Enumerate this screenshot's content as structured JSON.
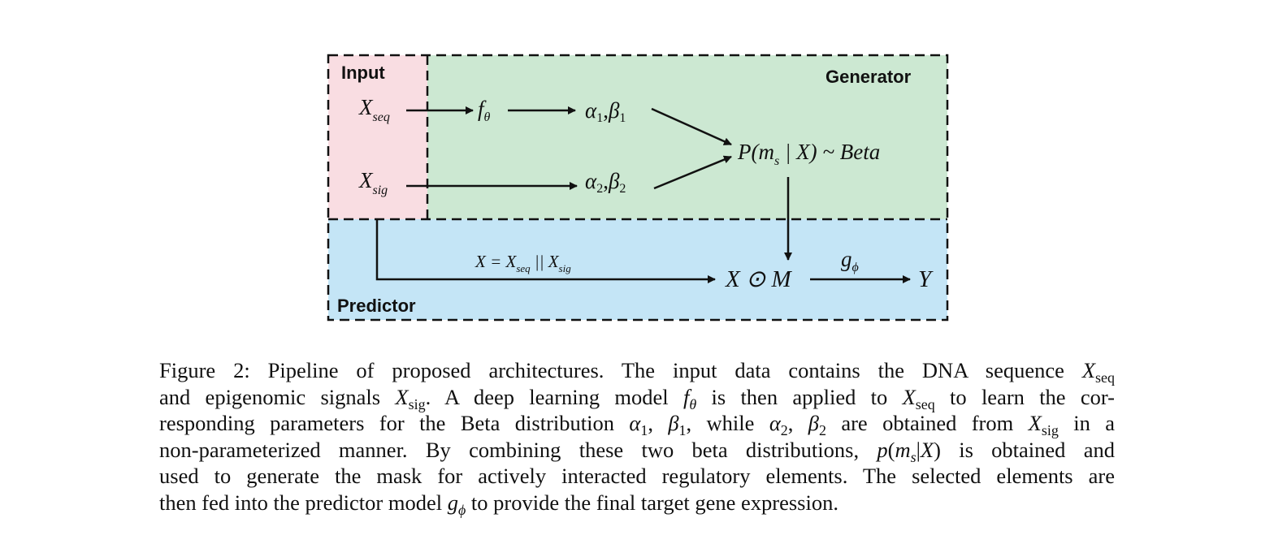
{
  "diagram": {
    "regions": {
      "input": "Input",
      "generator": "Generator",
      "predictor": "Predictor"
    },
    "colors": {
      "input": "#f9dde2",
      "generator": "#cce8d2",
      "predictor": "#c4e5f6",
      "stroke": "#111111"
    },
    "nodes": {
      "x_seq": {
        "base": "X",
        "sub": "seq"
      },
      "x_sig": {
        "base": "X",
        "sub": "sig"
      },
      "f_theta": {
        "base": "f",
        "sub": "θ"
      },
      "ab1": {
        "a": "α",
        "a_sub": "1",
        "sep": ",",
        "b": "β",
        "b_sub": "1"
      },
      "ab2": {
        "a": "α",
        "a_sub": "2",
        "sep": ",",
        "b": "β",
        "b_sub": "2"
      },
      "posterior": {
        "pre": "P(m",
        "sub": "s",
        "post": " | X) ~ Beta"
      },
      "concat": {
        "pre": "X = X",
        "sub1": "seq",
        "mid": " || X",
        "sub2": "sig"
      },
      "masked": "X ⊙ M",
      "g_phi": {
        "base": "g",
        "sub": "ϕ"
      },
      "output": "Y"
    }
  },
  "caption": {
    "lines": [
      [
        {
          "t": "Figure 2: Pipeline of proposed architectures. The input data contains the DNA sequence "
        },
        {
          "i": "X"
        },
        {
          "sub": "seq"
        }
      ],
      [
        {
          "t": "and epigenomic signals "
        },
        {
          "i": "X"
        },
        {
          "sub": "sig"
        },
        {
          "t": ". A deep learning model "
        },
        {
          "i": "f"
        },
        {
          "isub": "θ"
        },
        {
          "t": " is then applied to "
        },
        {
          "i": "X"
        },
        {
          "sub": "seq"
        },
        {
          "t": " to learn the cor-"
        }
      ],
      [
        {
          "t": "responding parameters for the Beta distribution "
        },
        {
          "i": "α"
        },
        {
          "sub": "1"
        },
        {
          "t": ", "
        },
        {
          "i": "β"
        },
        {
          "sub": "1"
        },
        {
          "t": ", while "
        },
        {
          "i": "α"
        },
        {
          "sub": "2"
        },
        {
          "t": ", "
        },
        {
          "i": "β"
        },
        {
          "sub": "2"
        },
        {
          "t": " are obtained from "
        },
        {
          "i": "X"
        },
        {
          "sub": "sig"
        },
        {
          "t": " in a"
        }
      ],
      [
        {
          "t": "non-parameterized manner. By combining these two beta distributions, "
        },
        {
          "i": "p"
        },
        {
          "t": "("
        },
        {
          "i": "m"
        },
        {
          "isub": "s"
        },
        {
          "t": "|"
        },
        {
          "i": "X"
        },
        {
          "t": ") is obtained and"
        }
      ],
      [
        {
          "t": "used to generate the mask for actively interacted regulatory elements. The selected elements are"
        }
      ],
      [
        {
          "t": "then fed into the predictor model "
        },
        {
          "i": "g"
        },
        {
          "isub": "ϕ"
        },
        {
          "t": " to provide the final target gene expression."
        }
      ]
    ]
  }
}
